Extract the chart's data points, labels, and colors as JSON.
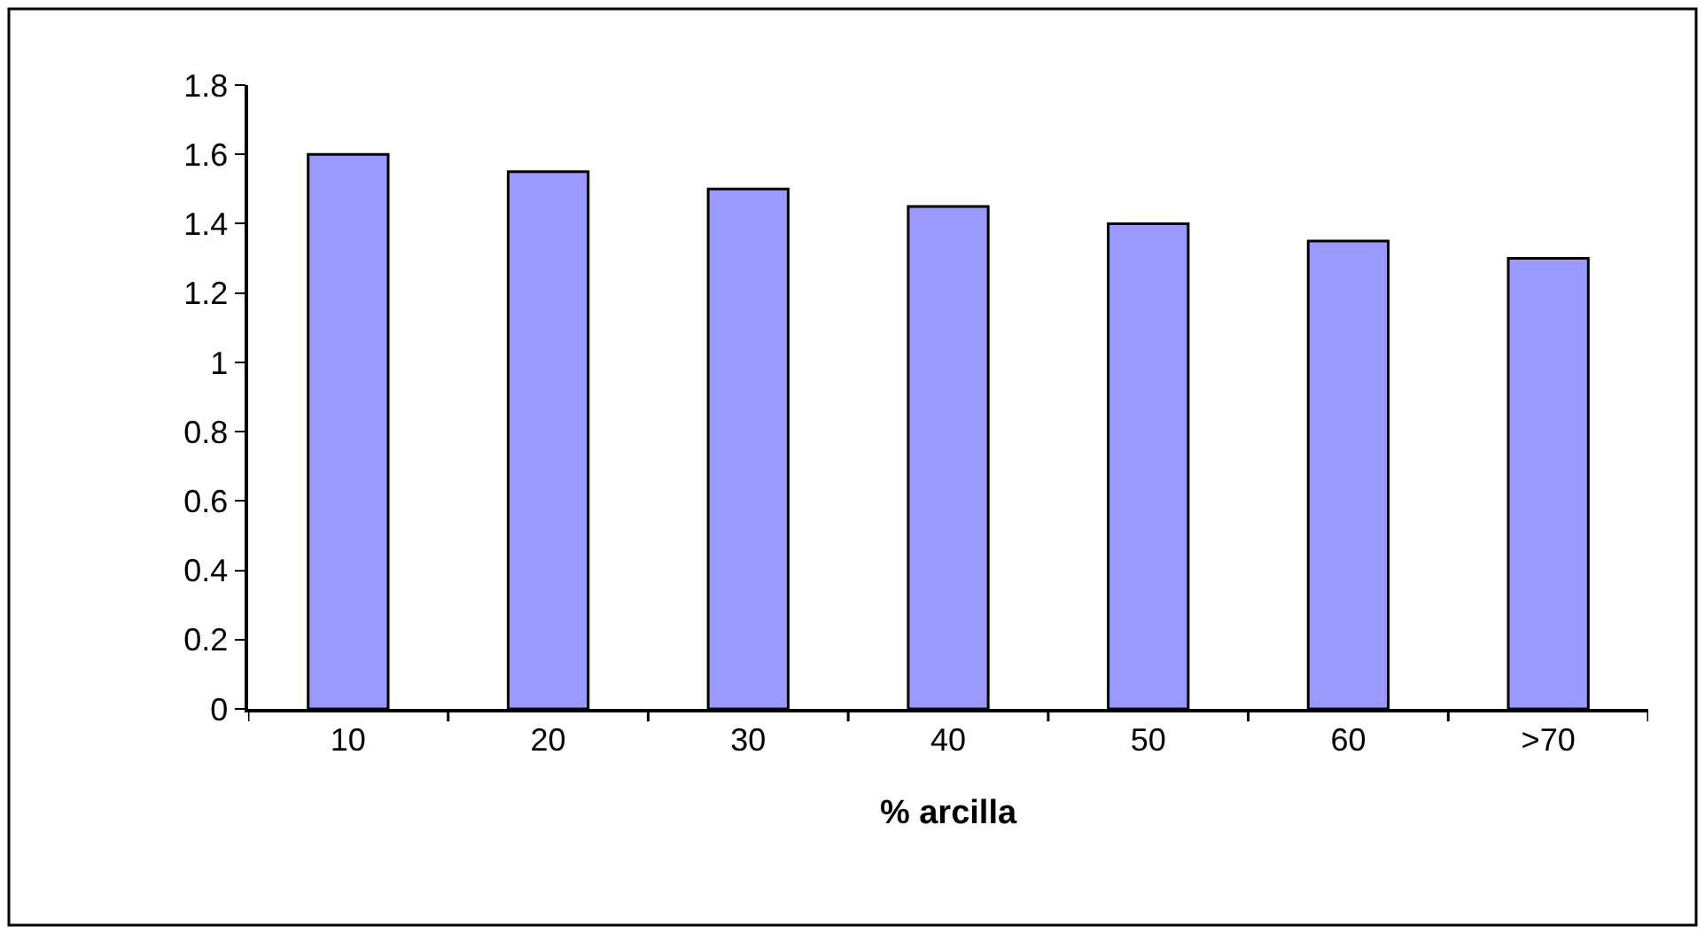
{
  "chart_data": {
    "type": "bar",
    "xlabel": "% arcilla",
    "categories": [
      "10",
      "20",
      "30",
      "40",
      "50",
      "60",
      ">70"
    ],
    "values": [
      1.6,
      1.55,
      1.5,
      1.45,
      1.4,
      1.35,
      1.3
    ],
    "color": "#9999ff",
    "ylim": [
      0,
      1.8
    ],
    "yticks": [
      0,
      0.2,
      0.4,
      0.6,
      0.8,
      1,
      1.2,
      1.4,
      1.6,
      1.8
    ]
  }
}
